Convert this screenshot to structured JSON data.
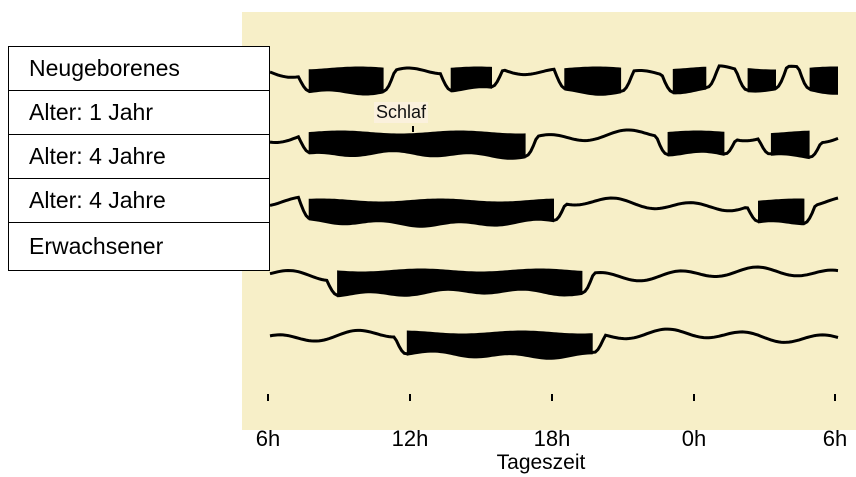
{
  "rows": [
    {
      "label": "Neugeborenes",
      "sleep": [
        [
          0.07,
          0.2
        ],
        [
          0.32,
          0.39
        ],
        [
          0.52,
          0.62
        ],
        [
          0.71,
          0.77
        ],
        [
          0.84,
          0.89
        ],
        [
          0.95,
          1.0
        ]
      ]
    },
    {
      "label": "Alter:  1 Jahr",
      "sleep": [
        [
          0.07,
          0.45
        ],
        [
          0.7,
          0.8
        ],
        [
          0.88,
          0.95
        ]
      ]
    },
    {
      "label": "Alter:  4 Jahre",
      "sleep": [
        [
          0.07,
          0.5
        ],
        [
          0.86,
          0.94
        ]
      ]
    },
    {
      "label": "Alter:  4 Jahre",
      "sleep": [
        [
          0.12,
          0.55
        ]
      ]
    },
    {
      "label": "Erwachsener",
      "sleep": [
        [
          0.24,
          0.57
        ]
      ]
    }
  ],
  "annotation": "Schlaf",
  "x_ticks": [
    "6h",
    "12h",
    "18h",
    "0h",
    "6h"
  ],
  "x_label": "Tageszeit",
  "colors": {
    "panel": "#f7efc8",
    "ink": "#000000",
    "annotation_bg": "#fbf1dd"
  }
}
